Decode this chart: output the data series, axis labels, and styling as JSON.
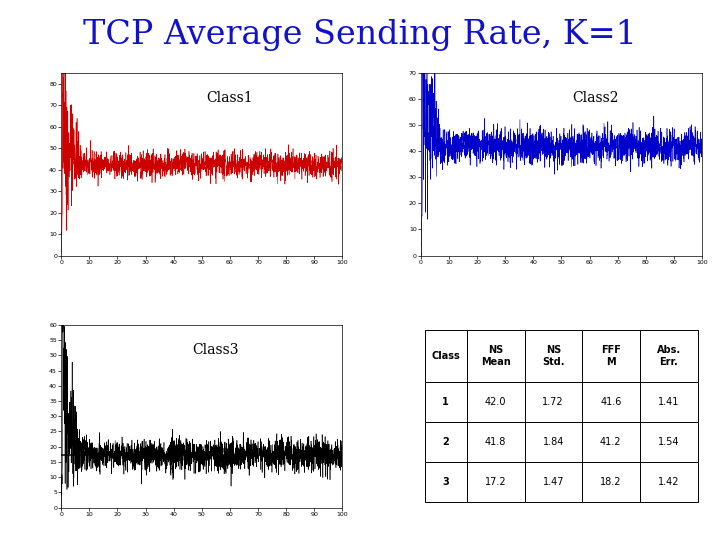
{
  "title": "TCP Average Sending Rate, K=1",
  "title_color": "#1111cc",
  "title_fontsize": 24,
  "class1_label": "Class1",
  "class2_label": "Class2",
  "class3_label": "Class3",
  "class1_color": "#cc0000",
  "class2_color": "#0000cc",
  "class3_color": "#000000",
  "class1_steady": 42.0,
  "class1_std": 2.5,
  "class1_ylim_max": 85,
  "class1_spike": 85,
  "class2_steady": 42.0,
  "class2_std": 2.8,
  "class2_ylim_max": 70,
  "class2_spike": 68,
  "class3_steady": 17.2,
  "class3_std": 2.2,
  "class3_ylim_max": 60,
  "class3_spike": 60,
  "class3_mean_line": 17.2,
  "table_headers": [
    "Class",
    "NS\nMean",
    "NS\nStd.",
    "FFF\nM",
    "Abs.\nErr."
  ],
  "table_rows": [
    [
      "1",
      "42.0",
      "1.72",
      "41.6",
      "1.41"
    ],
    [
      "2",
      "41.8",
      "1.84",
      "41.2",
      "1.54"
    ],
    [
      "3",
      "17.2",
      "1.47",
      "18.2",
      "1.42"
    ]
  ],
  "background_color": "#ffffff",
  "n_points": 2000
}
